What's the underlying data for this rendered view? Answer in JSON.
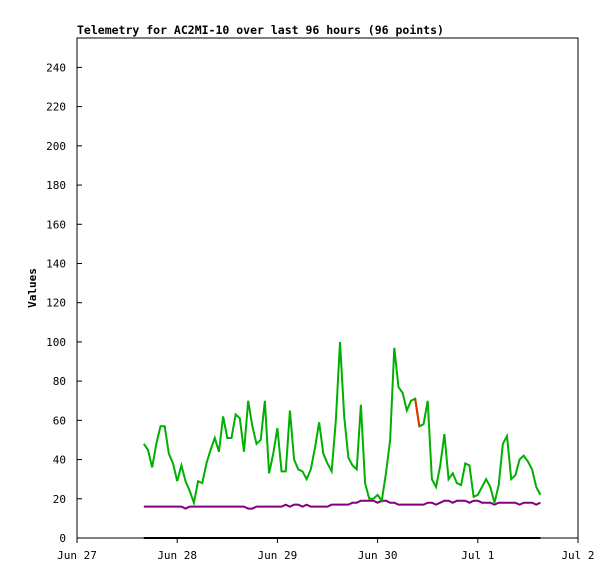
{
  "chart_data": {
    "type": "line",
    "title": "Telemetry for AC2MI-10 over last 96 hours (96 points)",
    "y_label": "Values",
    "xlim": [
      0,
      120
    ],
    "xticks": [
      {
        "value": 0,
        "label": "Jun 27"
      },
      {
        "value": 24,
        "label": "Jun 28"
      },
      {
        "value": 48,
        "label": "Jun 29"
      },
      {
        "value": 72,
        "label": "Jun 30"
      },
      {
        "value": 96,
        "label": "Jul 1"
      },
      {
        "value": 120,
        "label": "Jul 2"
      }
    ],
    "ylim": [
      0,
      255
    ],
    "yticks": [
      0,
      20,
      40,
      60,
      80,
      100,
      120,
      140,
      160,
      180,
      200,
      220,
      240
    ],
    "x": [
      16,
      17,
      18,
      19,
      20,
      21,
      22,
      23,
      24,
      25,
      26,
      27,
      28,
      29,
      30,
      31,
      32,
      33,
      34,
      35,
      36,
      37,
      38,
      39,
      40,
      41,
      42,
      43,
      44,
      45,
      46,
      47,
      48,
      49,
      50,
      51,
      52,
      53,
      54,
      55,
      56,
      57,
      58,
      59,
      60,
      61,
      62,
      63,
      64,
      65,
      66,
      67,
      68,
      69,
      70,
      71,
      72,
      73,
      74,
      75,
      76,
      77,
      78,
      79,
      80,
      81,
      82,
      83,
      84,
      85,
      86,
      87,
      88,
      89,
      90,
      91,
      92,
      93,
      94,
      95,
      96,
      97,
      98,
      99,
      100,
      101,
      102,
      103,
      104,
      105,
      106,
      107,
      108,
      109,
      110,
      111
    ],
    "series": [
      {
        "color": "#000000",
        "values": [
          0,
          0,
          0,
          0,
          0,
          0,
          0,
          0,
          0,
          0,
          0,
          0,
          0,
          0,
          0,
          0,
          0,
          0,
          0,
          0,
          0,
          0,
          0,
          0,
          0,
          0,
          0,
          0,
          0,
          0,
          0,
          0,
          0,
          0,
          0,
          0,
          0,
          0,
          0,
          0,
          0,
          0,
          0,
          0,
          0,
          0,
          0,
          0,
          0,
          0,
          0,
          0,
          0,
          0,
          0,
          0,
          0,
          0,
          0,
          0,
          0,
          0,
          0,
          0,
          0,
          0,
          0,
          0,
          0,
          0,
          0,
          0,
          0,
          0,
          0,
          0,
          0,
          0,
          0,
          0,
          0,
          0,
          0,
          0,
          0,
          0,
          0,
          0,
          0,
          0,
          0,
          0,
          0,
          0,
          0,
          0
        ]
      },
      {
        "color": "#800080",
        "values": [
          16,
          16,
          16,
          16,
          16,
          16,
          16,
          16,
          16,
          16,
          15,
          16,
          16,
          16,
          16,
          16,
          16,
          16,
          16,
          16,
          16,
          16,
          16,
          16,
          16,
          15,
          15,
          16,
          16,
          16,
          16,
          16,
          16,
          16,
          17,
          16,
          17,
          17,
          16,
          17,
          16,
          16,
          16,
          16,
          16,
          17,
          17,
          17,
          17,
          17,
          18,
          18,
          19,
          19,
          19,
          19,
          18,
          19,
          19,
          18,
          18,
          17,
          17,
          17,
          17,
          17,
          17,
          17,
          18,
          18,
          17,
          18,
          19,
          19,
          18,
          19,
          19,
          19,
          18,
          19,
          19,
          18,
          18,
          18,
          17,
          18,
          18,
          18,
          18,
          18,
          17,
          18,
          18,
          18,
          17,
          18
        ]
      },
      {
        "color": "#00b000",
        "values": [
          48,
          45,
          36,
          48,
          57,
          57,
          43,
          38,
          29,
          37,
          29,
          24,
          18,
          29,
          28,
          38,
          45,
          51,
          44,
          62,
          51,
          51,
          63,
          61,
          44,
          70,
          57,
          48,
          50,
          70,
          33,
          43,
          56,
          34,
          34,
          65,
          40,
          35,
          34,
          30,
          35,
          46,
          59,
          43,
          38,
          34,
          60,
          100,
          62,
          41,
          37,
          35,
          68,
          28,
          20,
          20,
          22,
          19,
          33,
          50,
          97,
          77,
          74,
          65,
          70,
          71,
          57,
          58,
          70,
          30,
          26,
          37,
          53,
          30,
          33,
          28,
          27,
          38,
          37,
          21,
          22,
          26,
          30,
          26,
          18,
          27,
          48,
          52,
          30,
          32,
          40,
          42,
          39,
          35,
          26,
          22
        ]
      },
      {
        "color": "#e03000",
        "values": [
          null,
          null,
          null,
          null,
          null,
          null,
          null,
          null,
          null,
          null,
          null,
          null,
          null,
          null,
          null,
          null,
          null,
          null,
          null,
          null,
          null,
          null,
          null,
          null,
          null,
          null,
          null,
          null,
          null,
          null,
          null,
          null,
          null,
          null,
          null,
          null,
          null,
          null,
          null,
          null,
          null,
          null,
          null,
          null,
          null,
          null,
          null,
          100,
          null,
          null,
          null,
          null,
          null,
          null,
          null,
          null,
          null,
          null,
          null,
          null,
          null,
          null,
          null,
          null,
          null,
          71,
          57,
          null,
          null,
          null,
          null,
          null,
          null,
          null,
          null,
          null,
          null,
          null,
          null,
          null,
          null,
          null,
          null,
          null,
          null,
          null,
          null,
          null,
          null,
          null,
          null,
          null,
          null,
          null,
          null,
          null
        ]
      }
    ]
  }
}
